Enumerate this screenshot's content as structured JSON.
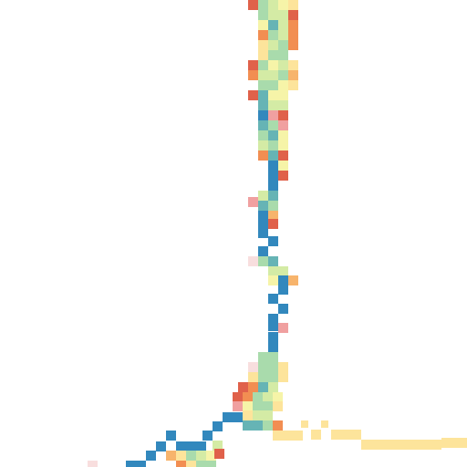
{
  "palette": {
    "red": "#e0614a",
    "orange": "#f28e52",
    "light_orange": "#f7b46c",
    "yellow": "#fde49b",
    "pale_yellow": "#f6f4a8",
    "light_green": "#d4eba5",
    "mint": "#a9dbac",
    "teal": "#66b4b5",
    "blue": "#3288bd",
    "pink": "#f0a0a0",
    "pale_pink": "#f8dede"
  },
  "legend_colors_order": [
    "red",
    "orange",
    "light_orange",
    "yellow",
    "pale_yellow",
    "light_green",
    "mint",
    "teal",
    "blue",
    "pink",
    "pale_pink"
  ]
}
